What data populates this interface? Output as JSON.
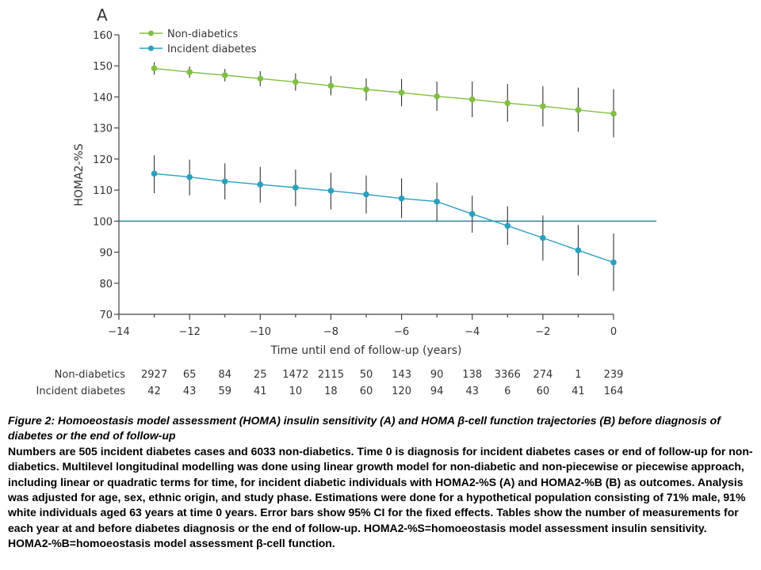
{
  "panel_label": "A",
  "chart_data": {
    "type": "line",
    "ylabel": "HOMA2-%S",
    "xlabel": "Time until end of follow-up (years)",
    "xlim": [
      -14,
      0
    ],
    "ylim": [
      70,
      160
    ],
    "xticks": [
      -14,
      -12,
      -10,
      -8,
      -6,
      -4,
      -2,
      0
    ],
    "xtick_labels": [
      "−14",
      "−12",
      "−10",
      "−8",
      "−6",
      "−4",
      "−2",
      "0"
    ],
    "yticks": [
      70,
      80,
      90,
      100,
      110,
      120,
      130,
      140,
      150,
      160
    ],
    "ytick_labels": [
      "70",
      "80",
      "90",
      "100",
      "110",
      "120",
      "130",
      "140",
      "150",
      "160"
    ],
    "reference_line_y": 100,
    "legend_position": "top-left",
    "x": [
      -13,
      -12,
      -11,
      -10,
      -9,
      -8,
      -7,
      -6,
      -5,
      -4,
      -3,
      -2,
      -1,
      0
    ],
    "series": [
      {
        "name": "Non-diabetics",
        "color": "#7fbf3f",
        "values": [
          149.2,
          148.0,
          147.0,
          145.9,
          144.8,
          143.6,
          142.4,
          141.4,
          140.2,
          139.2,
          138.0,
          137.0,
          135.8,
          134.6
        ],
        "ci_low": [
          147.2,
          146.2,
          145.0,
          143.5,
          142.0,
          140.5,
          138.8,
          137.0,
          135.5,
          133.5,
          132.0,
          130.5,
          128.8,
          127.0
        ],
        "ci_high": [
          151.2,
          149.8,
          149.0,
          148.3,
          147.6,
          146.7,
          146.0,
          145.8,
          145.0,
          145.0,
          144.2,
          143.5,
          143.0,
          142.5
        ]
      },
      {
        "name": "Incident diabetes",
        "color": "#2aa0bf",
        "values": [
          115.3,
          114.2,
          112.8,
          111.8,
          110.8,
          109.8,
          108.6,
          107.3,
          106.3,
          102.3,
          98.5,
          94.6,
          90.6,
          86.7
        ],
        "ci_low": [
          109.0,
          108.3,
          107.0,
          106.0,
          104.8,
          103.8,
          102.5,
          101.0,
          100.0,
          96.3,
          92.3,
          87.3,
          82.5,
          77.5
        ],
        "ci_high": [
          121.2,
          119.8,
          118.6,
          117.5,
          116.6,
          115.6,
          114.7,
          113.8,
          112.4,
          108.2,
          104.8,
          101.8,
          98.7,
          96.0
        ]
      }
    ],
    "table": {
      "rows": [
        {
          "label": "Non-diabetics",
          "counts": [
            "2927",
            "65",
            "84",
            "25",
            "1472",
            "2115",
            "50",
            "143",
            "90",
            "138",
            "3366",
            "274",
            "1",
            "239"
          ]
        },
        {
          "label": "Incident diabetes",
          "counts": [
            "42",
            "43",
            "59",
            "41",
            "10",
            "18",
            "60",
            "120",
            "94",
            "43",
            "6",
            "60",
            "41",
            "164"
          ]
        }
      ]
    }
  },
  "caption": {
    "title": "Figure 2: Homoeostasis model assessment (HOMA) insulin sensitivity (A) and HOMA β-cell function trajectories (B) before diagnosis of diabetes or the end of follow-up",
    "body": "Numbers are 505 incident diabetes cases and 6033 non-diabetics. Time 0 is diagnosis for incident diabetes cases or end of follow-up for non-diabetics. Multilevel longitudinal modelling was done using linear growth model for non-diabetic and non-piecewise or piecewise approach, including linear or quadratic terms for time, for incident diabetic individuals with HOMA2-%S (A) and HOMA2-%B (B) as outcomes. Analysis was adjusted for age, sex, ethnic origin, and study phase. Estimations were done for a hypothetical population consisting of 71% male, 91% white individuals aged 63 years at time 0 years. Error bars show 95% CI for the fixed effects. Tables show the number of measurements for each year at and before diabetes diagnosis or the end of follow-up. HOMA2-%S=homoeostasis model assessment insulin sensitivity. HOMA2-%B=homoeostasis model assessment β-cell function."
  }
}
